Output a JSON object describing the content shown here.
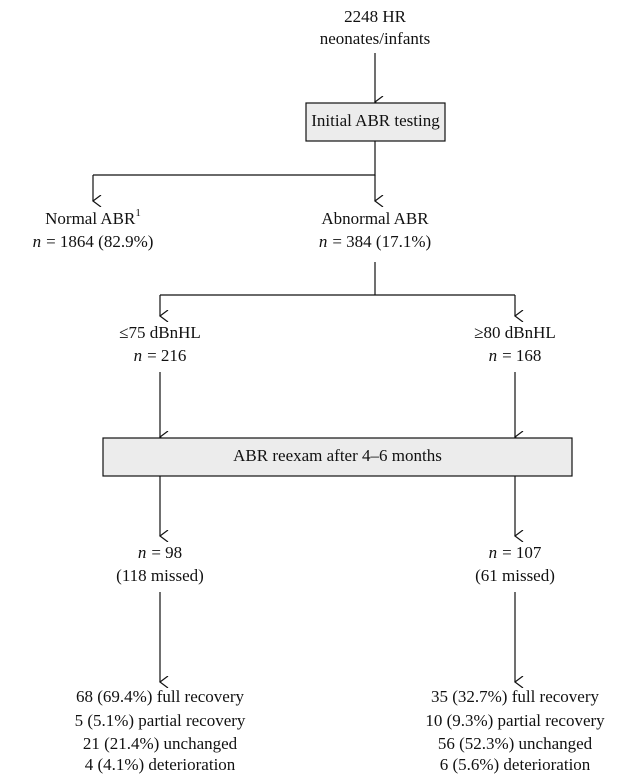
{
  "root": {
    "lines": [
      "2248 HR",
      "neonates/infants"
    ]
  },
  "initial_test": "Initial ABR testing",
  "branches": [
    {
      "label": "Normal ABR",
      "footnote": "1",
      "n_var": "n",
      "n_text": "= 1864 (82.9%)"
    },
    {
      "label": "Abnormal ABR",
      "n_var": "n",
      "n_text": "= 384 (17.1%)"
    }
  ],
  "groups": [
    {
      "label": "≤75 dBnHL",
      "n_var": "n",
      "n_text": "= 216",
      "followup": {
        "n_var": "n",
        "n_text": "= 98",
        "missed": "(118 missed)"
      },
      "outcomes": [
        "68 (69.4%) full recovery",
        "5 (5.1%) partial recovery",
        "21 (21.4%) unchanged",
        "4 (4.1%) deterioration"
      ]
    },
    {
      "label": "≥80 dBnHL",
      "n_var": "n",
      "n_text": "= 168",
      "followup": {
        "n_var": "n",
        "n_text": "= 107",
        "missed": "(61 missed)"
      },
      "outcomes": [
        "35 (32.7%) full recovery",
        "10 (9.3%) partial recovery",
        "56 (52.3%) unchanged",
        "6 (5.6%) deterioration"
      ]
    }
  ],
  "reexam": "ABR reexam after 4–6 months"
}
